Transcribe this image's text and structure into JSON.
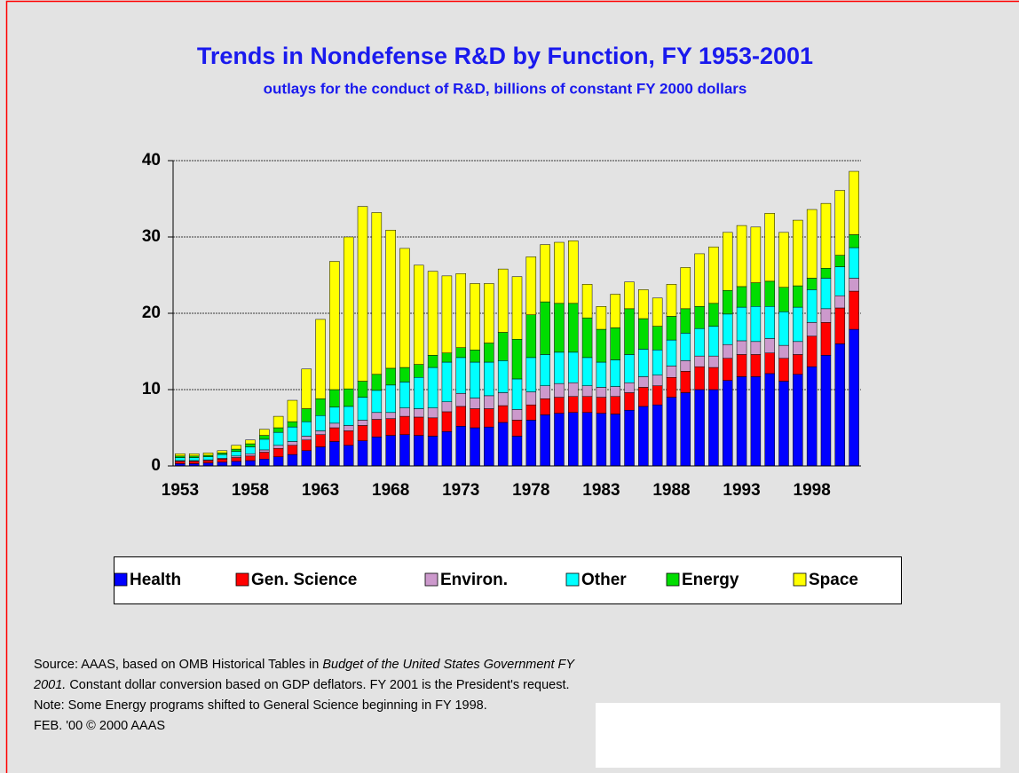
{
  "chart_data": {
    "type": "stacked_bar",
    "title": "Trends in Nondefense R&D by Function, FY 1953-2001",
    "subtitle": "outlays for the conduct of R&D, billions of constant FY 2000 dollars",
    "categories": [
      "1953",
      null,
      null,
      null,
      null,
      "1958",
      null,
      null,
      null,
      null,
      "1963",
      null,
      null,
      null,
      null,
      "1968",
      null,
      null,
      null,
      null,
      "1973",
      null,
      null,
      null,
      null,
      "1978",
      null,
      null,
      null,
      null,
      "1983",
      null,
      null,
      null,
      null,
      "1988",
      null,
      null,
      null,
      null,
      "1993",
      null,
      null,
      null,
      null,
      "1998",
      null,
      null,
      null
    ],
    "series": [
      {
        "name": "Health",
        "color": "#0000ff",
        "values": [
          0.3,
          0.3,
          0.4,
          0.5,
          0.6,
          0.7,
          0.9,
          1.2,
          1.5,
          2.0,
          2.5,
          3.2,
          2.7,
          3.3,
          3.8,
          4.0,
          4.1,
          4.0,
          3.9,
          4.5,
          5.2,
          5.0,
          5.1,
          5.7,
          3.9,
          6.0,
          6.7,
          6.9,
          7.0,
          7.0,
          6.9,
          6.8,
          7.3,
          7.8,
          8.0,
          9.0,
          9.6,
          10.0,
          10.0,
          11.2,
          11.7,
          11.7,
          12.1,
          11.1,
          12.0,
          13.0,
          14.5,
          16.0,
          17.9
        ]
      },
      {
        "name": "Gen. Science",
        "color": "#ff0000",
        "values": [
          0.3,
          0.3,
          0.3,
          0.4,
          0.5,
          0.6,
          0.9,
          1.1,
          1.2,
          1.4,
          1.6,
          1.8,
          1.9,
          2.0,
          2.3,
          2.2,
          2.4,
          2.4,
          2.4,
          2.6,
          2.6,
          2.5,
          2.4,
          2.2,
          2.1,
          2.0,
          2.1,
          2.1,
          2.1,
          2.1,
          2.1,
          2.3,
          2.3,
          2.5,
          2.5,
          2.6,
          2.8,
          3.0,
          2.9,
          2.9,
          2.9,
          2.9,
          2.7,
          3.0,
          2.6,
          4.0,
          4.3,
          4.7,
          5.0
        ]
      },
      {
        "name": "Environ.",
        "color": "#cc99cc",
        "values": [
          0.1,
          0.1,
          0.1,
          0.1,
          0.2,
          0.3,
          0.3,
          0.4,
          0.5,
          0.5,
          0.5,
          0.6,
          0.7,
          0.7,
          0.9,
          0.8,
          1.1,
          1.1,
          1.3,
          1.3,
          1.7,
          1.4,
          1.7,
          1.7,
          1.4,
          1.7,
          1.7,
          1.8,
          1.8,
          1.4,
          1.3,
          1.3,
          1.3,
          1.4,
          1.4,
          1.5,
          1.4,
          1.4,
          1.5,
          1.8,
          1.8,
          1.7,
          1.9,
          1.7,
          1.7,
          1.8,
          1.8,
          1.6,
          1.7
        ]
      },
      {
        "name": "Other",
        "color": "#00ffff",
        "values": [
          0.4,
          0.4,
          0.4,
          0.5,
          0.6,
          0.9,
          1.4,
          1.7,
          1.9,
          1.9,
          2.0,
          2.1,
          2.5,
          3.0,
          2.9,
          3.6,
          3.4,
          4.1,
          5.3,
          5.2,
          4.7,
          4.7,
          4.4,
          4.2,
          4.0,
          4.5,
          4.1,
          4.1,
          4.0,
          3.7,
          3.3,
          3.5,
          3.7,
          3.6,
          3.3,
          3.4,
          3.6,
          3.6,
          3.9,
          4.0,
          4.4,
          4.6,
          4.2,
          4.4,
          4.5,
          4.3,
          4.0,
          3.8,
          4.0
        ]
      },
      {
        "name": "Energy",
        "color": "#00dd00",
        "values": [
          0.2,
          0.2,
          0.2,
          0.2,
          0.3,
          0.4,
          0.5,
          0.6,
          0.7,
          1.7,
          2.2,
          2.3,
          2.3,
          2.1,
          2.1,
          2.2,
          1.9,
          1.7,
          1.6,
          1.2,
          1.3,
          1.6,
          2.5,
          3.7,
          5.2,
          5.6,
          6.9,
          6.4,
          6.4,
          5.2,
          4.3,
          4.2,
          6.0,
          4.0,
          3.1,
          3.1,
          3.2,
          2.9,
          3.0,
          3.1,
          2.7,
          3.1,
          3.3,
          3.2,
          2.8,
          1.5,
          1.3,
          1.5,
          1.7
        ]
      },
      {
        "name": "Space",
        "color": "#ffff00",
        "values": [
          0.3,
          0.3,
          0.3,
          0.3,
          0.5,
          0.5,
          0.8,
          1.5,
          2.8,
          5.2,
          10.4,
          16.8,
          19.9,
          22.9,
          21.2,
          18.1,
          15.6,
          13.0,
          11.0,
          10.1,
          9.7,
          8.7,
          7.8,
          8.3,
          8.2,
          7.6,
          7.5,
          8.0,
          8.2,
          4.4,
          3.0,
          4.4,
          3.5,
          3.8,
          3.7,
          4.2,
          5.4,
          6.9,
          7.4,
          7.6,
          8.0,
          7.3,
          8.9,
          7.2,
          8.6,
          9.0,
          8.5,
          8.5,
          8.3
        ]
      }
    ],
    "ylim": [
      0,
      40
    ],
    "yticks": [
      0,
      10,
      20,
      30,
      40
    ],
    "grid": true,
    "legend": "bottom",
    "source": [
      "Source: AAAS, based on OMB Historical Tables in ",
      "Budget of the United States Government FY 2001.",
      "  Constant dollar conversion based on  GDP deflators. FY 2001 is the President's request."
    ],
    "note": "Note: Some Energy programs shifted to General Science beginning in FY 1998.",
    "footer": "FEB. '00 © 2000 AAAS"
  }
}
